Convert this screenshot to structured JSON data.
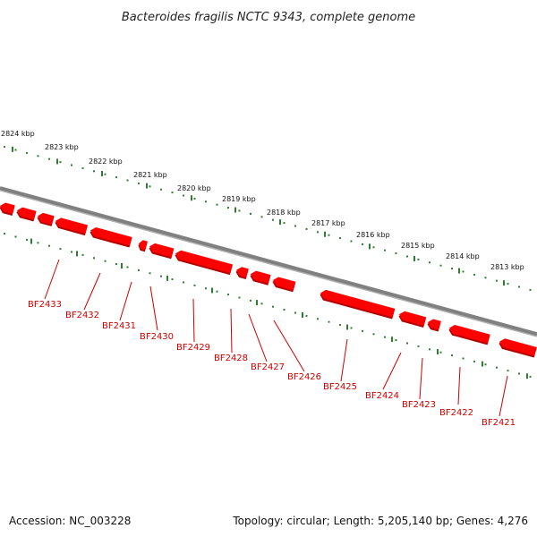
{
  "title": "Bacteroides fragilis NCTC 9343, complete genome",
  "footer": {
    "accession": "Accession: NC_003228",
    "summary": "Topology: circular; Length: 5,205,140 bp; Genes: 4,276"
  },
  "colors": {
    "backbone": "#808080",
    "backbone_shadow": "#b0b0b0",
    "tick": "#2e7d32",
    "gene": "#ff0000",
    "gene_shadow": "#b30000",
    "label": "#cc0000"
  },
  "scale": {
    "unit": "kbp",
    "ticks": [
      "2824 kbp",
      "2823 kbp",
      "2822 kbp",
      "2821 kbp",
      "2820 kbp",
      "2819 kbp",
      "2818 kbp",
      "2817 kbp",
      "2816 kbp",
      "2815 kbp",
      "2814 kbp",
      "2813 kbp"
    ]
  },
  "genes": [
    {
      "label": "BF2433"
    },
    {
      "label": "BF2432"
    },
    {
      "label": "BF2431"
    },
    {
      "label": "BF2430"
    },
    {
      "label": "BF2429"
    },
    {
      "label": "BF2428"
    },
    {
      "label": "BF2427"
    },
    {
      "label": "BF2426"
    },
    {
      "label": "BF2425"
    },
    {
      "label": "BF2424"
    },
    {
      "label": "BF2423"
    },
    {
      "label": "BF2422"
    },
    {
      "label": "BF2421"
    }
  ]
}
